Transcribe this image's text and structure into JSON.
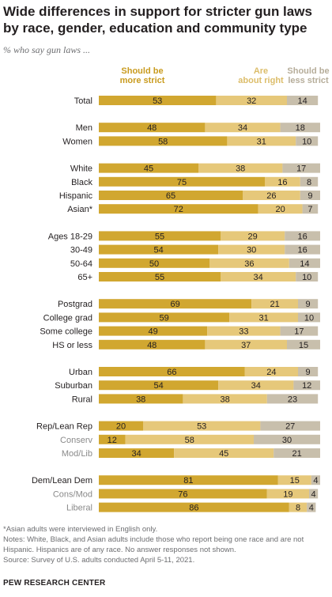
{
  "title": "Wide differences in support for stricter gun laws by race, gender, education and community type",
  "subtitle": "% who say gun laws ...",
  "notes": {
    "asian_note": "*Asian adults were interviewed in English only.",
    "notes_text": "Notes: White, Black, and Asian adults include those who report being one race and are not Hispanic. Hispanics are of any race. No answer responses not shown.",
    "source": "Source: Survey of U.S. adults conducted April 5-11, 2021."
  },
  "branding": "PEW RESEARCH CENTER",
  "colors": {
    "more_strict": "#d1a730",
    "about_right": "#e6c87a",
    "less_strict": "#c8bfac",
    "label_more": "#c99b1e",
    "label_right": "#dcbd6a",
    "label_less": "#b6ad9a"
  },
  "chart_data": {
    "type": "bar",
    "orientation": "horizontal",
    "stacked": true,
    "xlim": [
      0,
      100
    ],
    "series": [
      {
        "name_lines": [
          "Should be",
          "more strict"
        ],
        "color": "#d1a730",
        "values": [
          53,
          48,
          58,
          45,
          75,
          65,
          72,
          55,
          54,
          50,
          55,
          69,
          59,
          49,
          48,
          66,
          54,
          38,
          20,
          12,
          34,
          81,
          76,
          86
        ]
      },
      {
        "name_lines": [
          "Are",
          "about right"
        ],
        "color": "#e6c87a",
        "values": [
          32,
          34,
          31,
          38,
          16,
          26,
          20,
          29,
          30,
          36,
          34,
          21,
          31,
          33,
          37,
          24,
          34,
          38,
          53,
          58,
          45,
          15,
          19,
          8
        ]
      },
      {
        "name_lines": [
          "Should be",
          "less strict"
        ],
        "color": "#c8bfac",
        "values": [
          14,
          18,
          10,
          17,
          8,
          9,
          7,
          16,
          16,
          14,
          10,
          9,
          10,
          17,
          15,
          9,
          12,
          23,
          27,
          30,
          21,
          4,
          4,
          4
        ]
      }
    ],
    "categories": [
      "Total",
      "Men",
      "Women",
      "White",
      "Black",
      "Hispanic",
      "Asian*",
      "Ages 18-29",
      "30-49",
      "50-64",
      "65+",
      "Postgrad",
      "College grad",
      "Some college",
      "HS or less",
      "Urban",
      "Suburban",
      "Rural",
      "Rep/Lean Rep",
      "Conserv",
      "Mod/Lib",
      "Dem/Lean Dem",
      "Cons/Mod",
      "Liberal"
    ],
    "subcategory": [
      false,
      false,
      false,
      false,
      false,
      false,
      false,
      false,
      false,
      false,
      false,
      false,
      false,
      false,
      false,
      false,
      false,
      false,
      false,
      true,
      true,
      false,
      true,
      true
    ],
    "group": [
      0,
      1,
      1,
      2,
      2,
      2,
      2,
      3,
      3,
      3,
      3,
      4,
      4,
      4,
      4,
      5,
      5,
      5,
      6,
      6,
      6,
      7,
      7,
      7
    ]
  }
}
